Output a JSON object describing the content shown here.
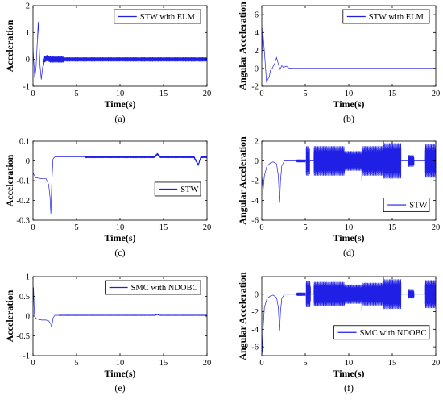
{
  "colors": {
    "series": "#1f1fe6",
    "axis": "#000000",
    "background": "#ffffff"
  },
  "chart_data": [
    {
      "id": "a",
      "type": "line",
      "caption": "(a)",
      "xlabel": "Time(s)",
      "ylabel": "Acceleration",
      "xlim": [
        0,
        20
      ],
      "ylim": [
        -1,
        2
      ],
      "xticks": [
        0,
        5,
        10,
        15,
        20
      ],
      "yticks": [
        -1,
        0,
        1,
        2
      ],
      "legend": "top-right",
      "grid": false,
      "series": [
        {
          "name": "STW with ELM",
          "x": [
            0,
            0.2,
            0.35,
            0.5,
            0.6,
            0.7,
            0.8,
            0.95,
            1.1,
            1.3,
            1.6,
            2.0,
            2.5,
            3.0,
            4.0,
            5.0,
            10,
            15,
            20
          ],
          "y": [
            0.4,
            -0.7,
            -0.3,
            0.7,
            1.4,
            0.5,
            -0.2,
            -0.75,
            -0.3,
            0.0,
            0.05,
            0.0,
            0.0,
            0.0,
            0.0,
            0.0,
            0.0,
            0.0,
            0.0
          ],
          "oscillation": [
            {
              "from": 1.2,
              "to": 3.5,
              "amplitude": 0.12
            },
            {
              "from": 3.5,
              "to": 20,
              "amplitude": 0.08
            }
          ]
        }
      ]
    },
    {
      "id": "b",
      "type": "line",
      "caption": "(b)",
      "xlabel": "Time(s)",
      "ylabel": "Angular Acceleration",
      "xlim": [
        0,
        20
      ],
      "ylim": [
        -2,
        7
      ],
      "xticks": [
        0,
        5,
        10,
        15,
        20
      ],
      "yticks": [
        -2,
        0,
        2,
        4,
        6
      ],
      "legend": "top-right",
      "grid": false,
      "series": [
        {
          "name": "STW with ELM",
          "x": [
            0,
            0.1,
            0.25,
            0.4,
            0.55,
            0.7,
            0.85,
            1.0,
            1.2,
            1.5,
            1.7,
            1.9,
            2.1,
            2.3,
            2.5,
            2.8,
            3.1,
            3.5,
            4.0,
            5.0,
            10,
            15,
            20
          ],
          "y": [
            1.0,
            4.5,
            2.5,
            0.5,
            -1.6,
            -1.2,
            -1.0,
            -0.2,
            0.0,
            0.6,
            1.2,
            0.5,
            -0.1,
            0.3,
            0.1,
            0.25,
            0.05,
            0.0,
            0.0,
            0.0,
            0.0,
            0.0,
            0.0
          ],
          "oscillation": []
        }
      ]
    },
    {
      "id": "c",
      "type": "line",
      "caption": "(c)",
      "xlabel": "Time(s)",
      "ylabel": "Acceleration",
      "xlim": [
        0,
        20
      ],
      "ylim": [
        -0.3,
        0.1
      ],
      "xticks": [
        0,
        5,
        10,
        15,
        20
      ],
      "yticks": [
        -0.3,
        -0.2,
        -0.1,
        0,
        0.1
      ],
      "legend": "bottom-right",
      "grid": false,
      "series": [
        {
          "name": "STW",
          "x": [
            0,
            0.3,
            1.0,
            1.5,
            1.8,
            1.95,
            2.05,
            2.15,
            2.3,
            2.5,
            3.0,
            5.0,
            6.0,
            10,
            14.0,
            14.3,
            14.6,
            15,
            18.5,
            18.8,
            19.0,
            19.3,
            20
          ],
          "y": [
            -0.06,
            -0.085,
            -0.09,
            -0.09,
            -0.12,
            -0.18,
            -0.27,
            -0.12,
            0.01,
            0.02,
            0.02,
            0.02,
            0.02,
            0.02,
            0.02,
            0.035,
            0.02,
            0.02,
            0.02,
            -0.005,
            -0.02,
            0.02,
            0.02
          ],
          "oscillation": [
            {
              "from": 6,
              "to": 20,
              "amplitude": 0.006
            }
          ]
        }
      ]
    },
    {
      "id": "d",
      "type": "line",
      "caption": "(d)",
      "xlabel": "Time(s)",
      "ylabel": "Angular Acceleration",
      "xlim": [
        0,
        20
      ],
      "ylim": [
        -6,
        2
      ],
      "xticks": [
        0,
        5,
        10,
        15,
        20
      ],
      "yticks": [
        -6,
        -4,
        -2,
        0,
        2
      ],
      "legend": "bottom-right",
      "grid": false,
      "series": [
        {
          "name": "STW",
          "x": [
            0,
            0.15,
            0.3,
            0.6,
            1.0,
            1.3,
            1.7,
            1.9,
            2.05,
            2.15,
            2.3,
            2.6,
            3.0,
            4.0,
            5.0,
            20
          ],
          "y": [
            -1.5,
            -3.0,
            -1.5,
            -0.5,
            -0.2,
            -0.1,
            -0.3,
            -1.5,
            -4.3,
            -2.0,
            -0.5,
            0.0,
            0.0,
            0.0,
            0.0,
            0.0
          ],
          "oscillation": [
            {
              "from": 4.0,
              "to": 5.0,
              "amplitude": 0.15
            },
            {
              "from": 5.1,
              "to": 5.5,
              "amplitude": 1.5
            },
            {
              "from": 6.0,
              "to": 9.5,
              "amplitude": 1.5
            },
            {
              "from": 9.5,
              "to": 11.5,
              "amplitude": 1.0
            },
            {
              "from": 11.5,
              "to": 14.0,
              "amplitude": 1.5
            },
            {
              "from": 14.0,
              "to": 16.0,
              "amplitude": 1.8
            },
            {
              "from": 16.8,
              "to": 17.5,
              "amplitude": 0.6
            },
            {
              "from": 18.8,
              "to": 20,
              "amplitude": 1.7
            }
          ]
        }
      ]
    },
    {
      "id": "e",
      "type": "line",
      "caption": "(e)",
      "xlabel": "Time(s)",
      "ylabel": "Acceleration",
      "xlim": [
        0,
        20
      ],
      "ylim": [
        -1,
        1
      ],
      "xticks": [
        0,
        5,
        10,
        15,
        20
      ],
      "yticks": [
        -1,
        -0.5,
        0,
        0.5,
        1
      ],
      "legend": "top-right",
      "grid": false,
      "series": [
        {
          "name": "SMC with NDOBC",
          "x": [
            0,
            0.05,
            0.15,
            0.3,
            0.6,
            1.0,
            1.5,
            1.8,
            2.0,
            2.15,
            2.3,
            2.5,
            3.0,
            14.0,
            14.3,
            14.6,
            20
          ],
          "y": [
            0.0,
            0.75,
            0.05,
            -0.05,
            -0.08,
            -0.1,
            -0.1,
            -0.12,
            -0.18,
            -0.28,
            -0.05,
            0.02,
            0.02,
            0.02,
            0.04,
            0.02,
            0.02
          ],
          "oscillation": [
            {
              "from": 3.0,
              "to": 20,
              "amplitude": 0.012
            }
          ]
        }
      ]
    },
    {
      "id": "f",
      "type": "line",
      "caption": "(f)",
      "xlabel": "Time(s)",
      "ylabel": "Angular Acceleration",
      "xlim": [
        0,
        20
      ],
      "ylim": [
        -7,
        2
      ],
      "xticks": [
        0,
        5,
        10,
        15,
        20
      ],
      "yticks": [
        -6,
        -4,
        -2,
        0
      ],
      "legend": "bottom-right",
      "grid": false,
      "series": [
        {
          "name": "SMC with NDOBC",
          "x": [
            0,
            0.05,
            0.15,
            0.3,
            0.6,
            1.0,
            1.3,
            1.7,
            1.9,
            2.05,
            2.15,
            2.3,
            2.6,
            3.0,
            4.0,
            5.0,
            20
          ],
          "y": [
            -2.0,
            -6.8,
            -4.0,
            -1.5,
            -0.5,
            -0.2,
            -0.1,
            -0.4,
            -1.5,
            -4.2,
            -2.0,
            -0.5,
            0.0,
            0.0,
            0.0,
            0.0,
            0.0
          ],
          "oscillation": [
            {
              "from": 4.0,
              "to": 5.0,
              "amplitude": 0.2
            },
            {
              "from": 5.1,
              "to": 5.6,
              "amplitude": 1.5
            },
            {
              "from": 6.0,
              "to": 9.5,
              "amplitude": 1.4
            },
            {
              "from": 9.5,
              "to": 11.5,
              "amplitude": 1.1
            },
            {
              "from": 11.5,
              "to": 14.0,
              "amplitude": 1.3
            },
            {
              "from": 14.0,
              "to": 16.0,
              "amplitude": 1.7
            },
            {
              "from": 16.8,
              "to": 17.5,
              "amplitude": 0.5
            },
            {
              "from": 18.8,
              "to": 20,
              "amplitude": 1.6
            }
          ]
        }
      ]
    }
  ]
}
